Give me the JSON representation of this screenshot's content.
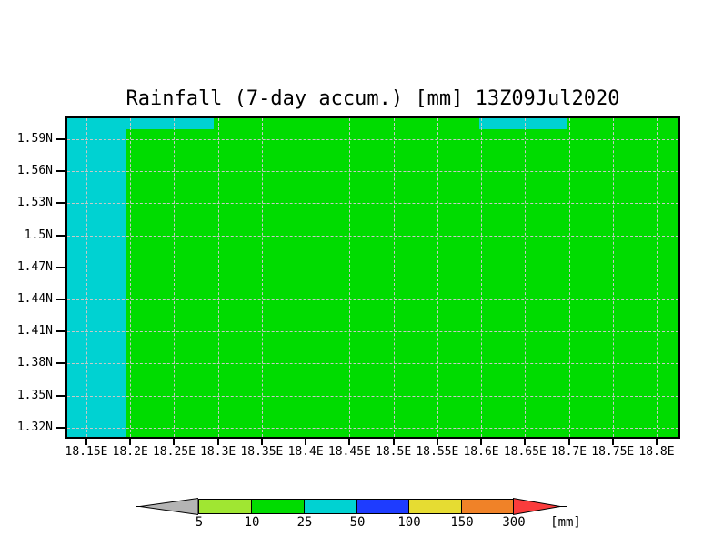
{
  "title": "Rainfall (7-day accum.) [mm] 13Z09Jul2020",
  "x_axis": {
    "labels": [
      "18.15E",
      "18.2E",
      "18.25E",
      "18.3E",
      "18.35E",
      "18.4E",
      "18.45E",
      "18.5E",
      "18.55E",
      "18.6E",
      "18.65E",
      "18.7E",
      "18.75E",
      "18.8E"
    ]
  },
  "y_axis": {
    "labels": [
      "1.59N",
      "1.56N",
      "1.53N",
      "1.5N",
      "1.47N",
      "1.44N",
      "1.41N",
      "1.38N",
      "1.35N",
      "1.32N"
    ]
  },
  "map": {
    "background_color": "#00dc00",
    "band_color": "#00d2d2",
    "gridline_color": "#c8c8c8"
  },
  "colorbar": {
    "values": [
      "5",
      "10",
      "25",
      "50",
      "100",
      "150",
      "300"
    ],
    "unit_label": "[mm]",
    "segment_colors": [
      "#a0e632",
      "#00dc00",
      "#00d2d2",
      "#1e3cff",
      "#e6dc32",
      "#f08228"
    ],
    "left_arrow_color": "#b4b4b4",
    "right_arrow_color": "#fa3c3c"
  },
  "chart_data": {
    "type": "heatmap",
    "title": "Rainfall (7-day accum.) [mm] 13Z09Jul2020",
    "variable": "Rainfall, 7-day accumulation",
    "unit": "mm",
    "valid_time": "13Z09Jul2020",
    "x_ticks": [
      "18.15E",
      "18.2E",
      "18.25E",
      "18.3E",
      "18.35E",
      "18.4E",
      "18.45E",
      "18.5E",
      "18.55E",
      "18.6E",
      "18.65E",
      "18.7E",
      "18.75E",
      "18.8E"
    ],
    "y_ticks": [
      "1.59N",
      "1.56N",
      "1.53N",
      "1.5N",
      "1.47N",
      "1.44N",
      "1.41N",
      "1.38N",
      "1.35N",
      "1.32N"
    ],
    "x_range": [
      "~18.13E",
      "~18.82E"
    ],
    "y_range": [
      "~1.31N",
      "~1.61N"
    ],
    "grid": true,
    "legend_position": "bottom-colorbar",
    "colorbar_boundaries_mm": [
      5,
      10,
      25,
      50,
      100,
      150,
      300
    ],
    "colorbar_colors": [
      "#b4b4b4",
      "#a0e632",
      "#00dc00",
      "#00d2d2",
      "#1e3cff",
      "#e6dc32",
      "#f08228",
      "#fa3c3c"
    ],
    "regions": [
      {
        "value_bin_mm": "25-50",
        "color": "#00d2d2",
        "extent": "western band: west of 18.2E, full latitude extent of domain"
      },
      {
        "value_bin_mm": "25-50",
        "color": "#00d2d2",
        "extent": "northern-edge strip: lon 18.2E-18.3E at ~1.60-1.61N"
      },
      {
        "value_bin_mm": "25-50",
        "color": "#00d2d2",
        "extent": "northern-edge strip: lon 18.6E-18.7E at ~1.60-1.61N"
      },
      {
        "value_bin_mm": "10-25",
        "color": "#00dc00",
        "extent": "remainder of entire domain (uniform)"
      }
    ]
  }
}
